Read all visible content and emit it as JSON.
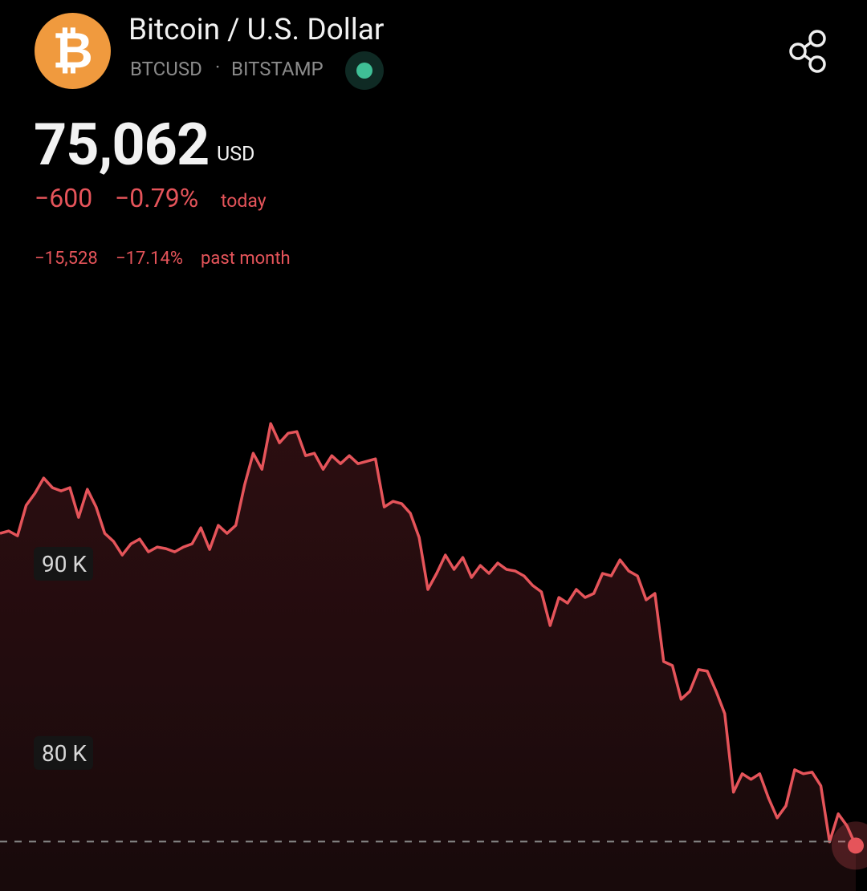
{
  "header": {
    "logo_symbol": "₿",
    "title": "Bitcoin / U.S. Dollar",
    "symbol": "BTCUSD",
    "exchange": "BITSTAMP"
  },
  "quote": {
    "price": "75,062",
    "currency": "USD",
    "today": {
      "change": "−600",
      "percent": "−0.79%",
      "label": "today"
    },
    "month": {
      "change": "−15,528",
      "percent": "−17.14%",
      "label": "past month"
    }
  },
  "chart_data": {
    "type": "line",
    "color": "#e5545a",
    "ylim": [
      72700,
      103700
    ],
    "yticks": [
      {
        "value": 80000,
        "label": "80 K"
      },
      {
        "value": 90000,
        "label": "90 K"
      }
    ],
    "series": [
      {
        "name": "BTCUSD",
        "color": "#e5545a",
        "values": [
          91610,
          91737,
          91483,
          93093,
          93729,
          94534,
          94025,
          93856,
          94025,
          92457,
          93941,
          93008,
          91610,
          91186,
          90466,
          91059,
          91313,
          90636,
          90890,
          90805,
          90636,
          90890,
          91059,
          91907,
          90763,
          92034,
          91610,
          92034,
          94152,
          95847,
          95000,
          97415,
          96398,
          96907,
          96991,
          95720,
          95847,
          95000,
          95720,
          95296,
          95720,
          95296,
          95424,
          95551,
          93008,
          93305,
          93178,
          92669,
          91398,
          88644,
          89492,
          90466,
          89704,
          90339,
          89280,
          89915,
          89492,
          90042,
          89704,
          89619,
          89364,
          88856,
          88517,
          86737,
          88220,
          87924,
          88644,
          88220,
          88432,
          89492,
          89364,
          90212,
          89619,
          89364,
          88093,
          88432,
          84831,
          84619,
          82839,
          83263,
          84407,
          84322,
          83263,
          82077,
          77925,
          78899,
          78603,
          78899,
          77628,
          76569,
          77204,
          79111,
          78899,
          78984,
          78264,
          75298,
          76781,
          76145,
          75100
        ]
      }
    ]
  }
}
